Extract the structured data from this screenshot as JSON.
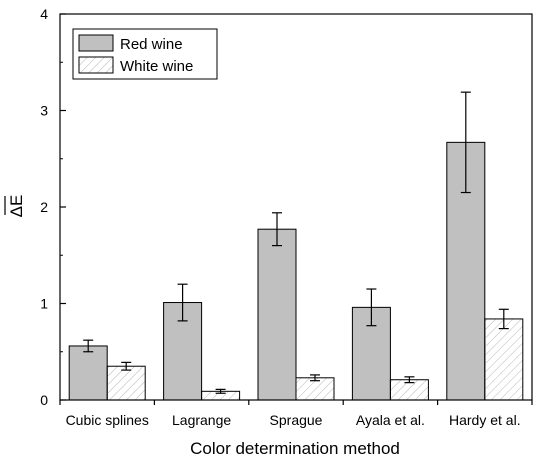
{
  "chart_data": {
    "type": "bar",
    "categories": [
      "Cubic splines",
      "Lagrange",
      "Sprague",
      "Ayala et al.",
      "Hardy et al."
    ],
    "series": [
      {
        "name": "Red wine",
        "values": [
          0.56,
          1.01,
          1.77,
          0.96,
          2.67
        ],
        "error": [
          0.06,
          0.19,
          0.17,
          0.19,
          0.52
        ],
        "fill": "#c0c0c0",
        "pattern": "solid"
      },
      {
        "name": "White wine",
        "values": [
          0.35,
          0.09,
          0.23,
          0.21,
          0.84
        ],
        "error": [
          0.04,
          0.02,
          0.03,
          0.03,
          0.1
        ],
        "fill": "#ffffff",
        "pattern": "diagonal-hatch"
      }
    ],
    "xlabel": "Color determination method",
    "ylabel": "ΔE",
    "ylabel_overline": true,
    "ylim": [
      0,
      4
    ],
    "yticks": [
      0,
      1,
      2,
      3,
      4
    ],
    "legend_position": "top-left",
    "grid": false
  }
}
